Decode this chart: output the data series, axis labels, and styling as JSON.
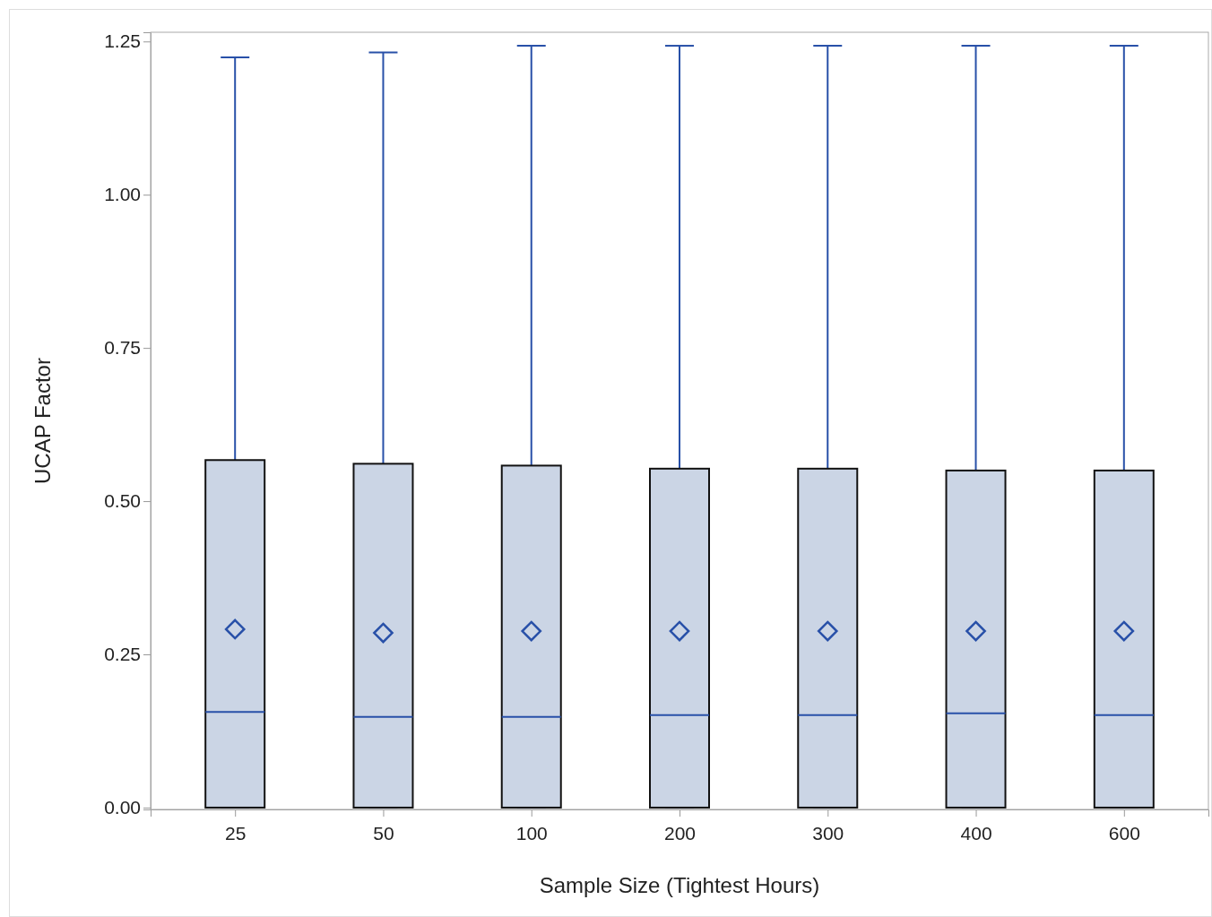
{
  "chart_data": {
    "type": "box",
    "xlabel": "Sample Size (Tightest Hours)",
    "ylabel": "UCAP Factor",
    "categories": [
      "25",
      "50",
      "100",
      "200",
      "300",
      "400",
      "600"
    ],
    "color": "#cbd5e5",
    "marker": "diamond",
    "grid": false,
    "ylim": [
      -0.003,
      1.265
    ],
    "yticks": [
      {
        "value": 0,
        "label": "0.00"
      },
      {
        "value": 0.25,
        "label": "0.25"
      },
      {
        "value": 0.5,
        "label": "0.50"
      },
      {
        "value": 0.75,
        "label": "0.75"
      },
      {
        "value": 1,
        "label": "1.00"
      },
      {
        "value": 1.25,
        "label": "1.25"
      }
    ],
    "boxes": [
      {
        "low": 0,
        "q1": 0,
        "median": 0.156,
        "q3": 0.567,
        "high": 1.224,
        "mean": 0.291
      },
      {
        "low": 0,
        "q1": 0,
        "median": 0.148,
        "q3": 0.561,
        "high": 1.232,
        "mean": 0.285
      },
      {
        "low": 0,
        "q1": 0,
        "median": 0.148,
        "q3": 0.558,
        "high": 1.243,
        "mean": 0.288
      },
      {
        "low": 0,
        "q1": 0,
        "median": 0.151,
        "q3": 0.553,
        "high": 1.243,
        "mean": 0.288
      },
      {
        "low": 0,
        "q1": 0,
        "median": 0.151,
        "q3": 0.553,
        "high": 1.243,
        "mean": 0.288
      },
      {
        "low": 0,
        "q1": 0,
        "median": 0.154,
        "q3": 0.55,
        "high": 1.243,
        "mean": 0.288
      },
      {
        "low": 0,
        "q1": 0,
        "median": 0.151,
        "q3": 0.55,
        "high": 1.243,
        "mean": 0.288
      }
    ]
  }
}
